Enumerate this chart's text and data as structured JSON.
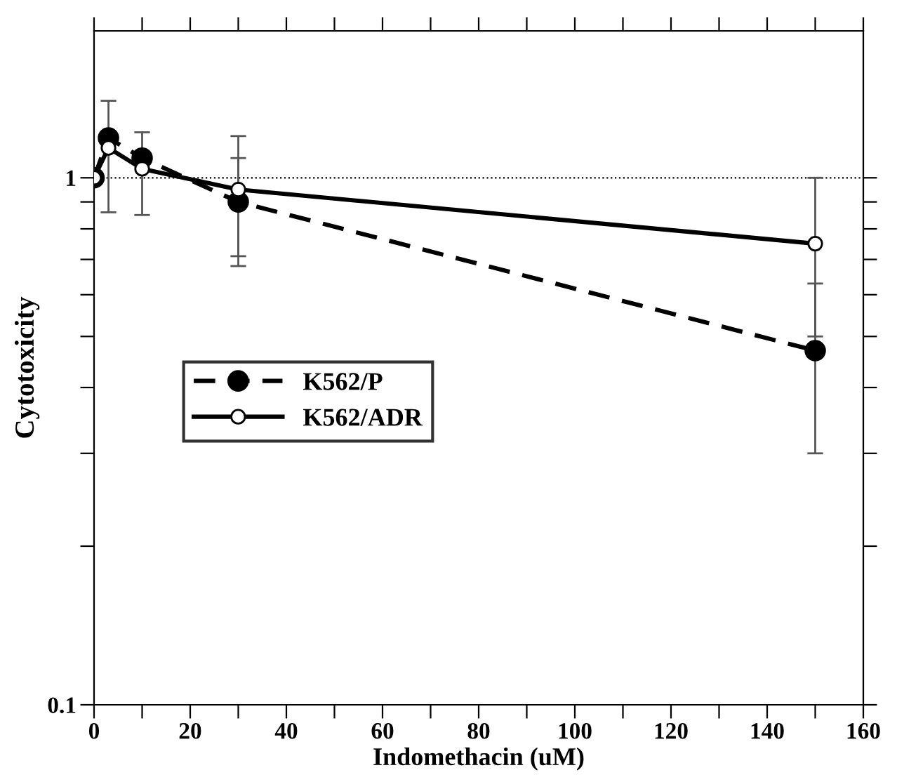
{
  "chart_data": {
    "type": "line",
    "xlabel": "Indomethacin (uM)",
    "ylabel": "Cytotoxicity",
    "x": [
      0,
      3,
      10,
      30,
      150
    ],
    "series": [
      {
        "name": "K562/P",
        "color": "#000000",
        "line_style": "dashed",
        "marker": "circle",
        "values": [
          1.0,
          1.19,
          1.09,
          0.9,
          0.47
        ],
        "errors": [
          null,
          [
            0.86,
            1.4
          ],
          [
            0.85,
            1.22
          ],
          [
            0.71,
            1.09
          ],
          [
            0.3,
            0.63
          ]
        ]
      },
      {
        "name": "K562/ADR",
        "color": "#000000",
        "line_style": "solid",
        "marker": "circle",
        "values": [
          1.0,
          1.14,
          1.04,
          0.95,
          0.75
        ],
        "errors": [
          null,
          null,
          null,
          [
            0.68,
            1.2
          ],
          [
            0.5,
            1.0
          ]
        ]
      }
    ],
    "log": "y",
    "xlim": [
      0,
      160
    ],
    "ylim": [
      0.1,
      1.9
    ],
    "xticks": [
      0,
      {
        "value": 10,
        "label": null
      },
      20,
      {
        "value": 30,
        "label": null
      },
      40,
      {
        "value": 50,
        "label": null
      },
      60,
      {
        "value": 70,
        "label": null
      },
      80,
      {
        "value": 90,
        "label": null
      },
      100,
      {
        "value": 110,
        "label": null
      },
      120,
      {
        "value": 130,
        "label": null
      },
      140,
      {
        "value": 150,
        "label": null
      },
      160
    ],
    "yticks": [
      0.1,
      {
        "value": 0.2,
        "label": null
      },
      {
        "value": 0.3,
        "label": null
      },
      {
        "value": 0.4,
        "label": null
      },
      {
        "value": 0.5,
        "label": null
      },
      {
        "value": 0.6,
        "label": null
      },
      {
        "value": 0.7,
        "label": null
      },
      {
        "value": 0.8,
        "label": null
      },
      {
        "value": 0.9,
        "label": null
      },
      1
    ],
    "ref_lines": [
      {
        "axis": "y",
        "value": 1,
        "line_style": "dotted",
        "color": "#000000"
      }
    ],
    "grid": false,
    "legend": "left"
  }
}
